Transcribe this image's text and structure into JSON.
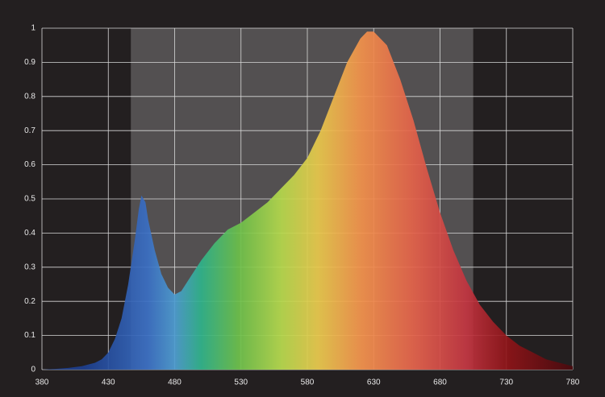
{
  "chart_data": {
    "type": "area",
    "x": [
      380,
      390,
      400,
      410,
      420,
      425,
      430,
      435,
      440,
      445,
      450,
      453,
      455,
      458,
      460,
      465,
      470,
      475,
      480,
      485,
      490,
      495,
      500,
      510,
      520,
      530,
      540,
      550,
      560,
      570,
      580,
      590,
      600,
      610,
      620,
      625,
      630,
      640,
      650,
      660,
      670,
      680,
      690,
      700,
      710,
      720,
      730,
      740,
      750,
      760,
      770,
      780
    ],
    "values": [
      0,
      0.002,
      0.005,
      0.01,
      0.02,
      0.03,
      0.05,
      0.09,
      0.15,
      0.25,
      0.38,
      0.47,
      0.51,
      0.49,
      0.44,
      0.35,
      0.28,
      0.24,
      0.22,
      0.23,
      0.26,
      0.29,
      0.32,
      0.37,
      0.41,
      0.43,
      0.46,
      0.49,
      0.53,
      0.57,
      0.62,
      0.7,
      0.8,
      0.9,
      0.97,
      0.99,
      0.99,
      0.95,
      0.85,
      0.73,
      0.59,
      0.46,
      0.35,
      0.26,
      0.19,
      0.14,
      0.1,
      0.07,
      0.05,
      0.03,
      0.02,
      0.01
    ],
    "xlim": [
      380,
      780
    ],
    "xticks": [
      380,
      430,
      480,
      530,
      580,
      630,
      680,
      730,
      780
    ],
    "ylim": [
      0,
      1
    ],
    "yticks": [
      0,
      0.1,
      0.2,
      0.3,
      0.4,
      0.5,
      0.6,
      0.7,
      0.8,
      0.9,
      1
    ],
    "shaded_range": [
      447,
      705
    ],
    "grid": true
  }
}
